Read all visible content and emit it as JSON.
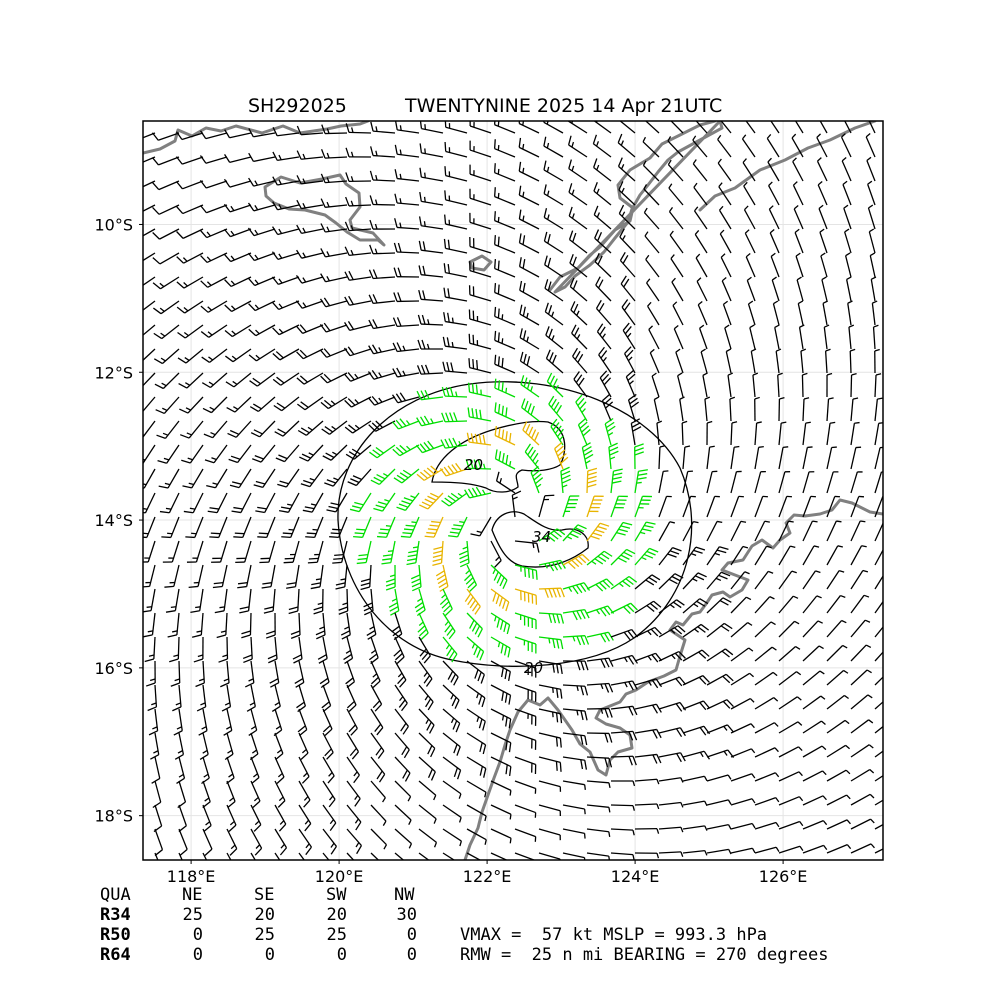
{
  "chart_data": {
    "type": "wind-barb-map",
    "title_id": "SH292025",
    "title_main": "TWENTYNINE 2025 14 Apr 21UTC",
    "x_ticks": [
      "118°E",
      "120°E",
      "122°E",
      "124°E",
      "126°E"
    ],
    "x_tick_values": [
      118,
      120,
      122,
      124,
      126
    ],
    "y_ticks": [
      "10°S",
      "12°S",
      "14°S",
      "16°S",
      "18°S"
    ],
    "y_tick_values": [
      -10,
      -12,
      -14,
      -16,
      -18
    ],
    "xlim": [
      117.35,
      127.35
    ],
    "ylim": [
      -18.6,
      -8.6
    ],
    "grid": true,
    "storm_center": {
      "lon": 122.3,
      "lat": -14.0
    },
    "contours": [
      {
        "label": "20",
        "level": 20
      },
      {
        "label": "34",
        "level": 34
      }
    ],
    "wind_colors": {
      "below_34": "#000000",
      "r34_to_50": "#00dd00",
      "r50_plus": "#e8b400"
    },
    "coast_color": "#808080",
    "table": {
      "headers": [
        "QUA",
        "NE",
        "SE",
        "SW",
        "NW"
      ],
      "rows": [
        {
          "label": "R34",
          "values": [
            "25",
            "20",
            "20",
            "30"
          ]
        },
        {
          "label": "R50",
          "values": [
            "0",
            "25",
            "25",
            "0"
          ]
        },
        {
          "label": "R64",
          "values": [
            "0",
            "0",
            "0",
            "0"
          ]
        }
      ]
    },
    "summary_line1": "VMAX =  57 kt MSLP = 993.3 hPa",
    "summary_line2": "RMW =  25 n mi BEARING = 270 degrees"
  }
}
